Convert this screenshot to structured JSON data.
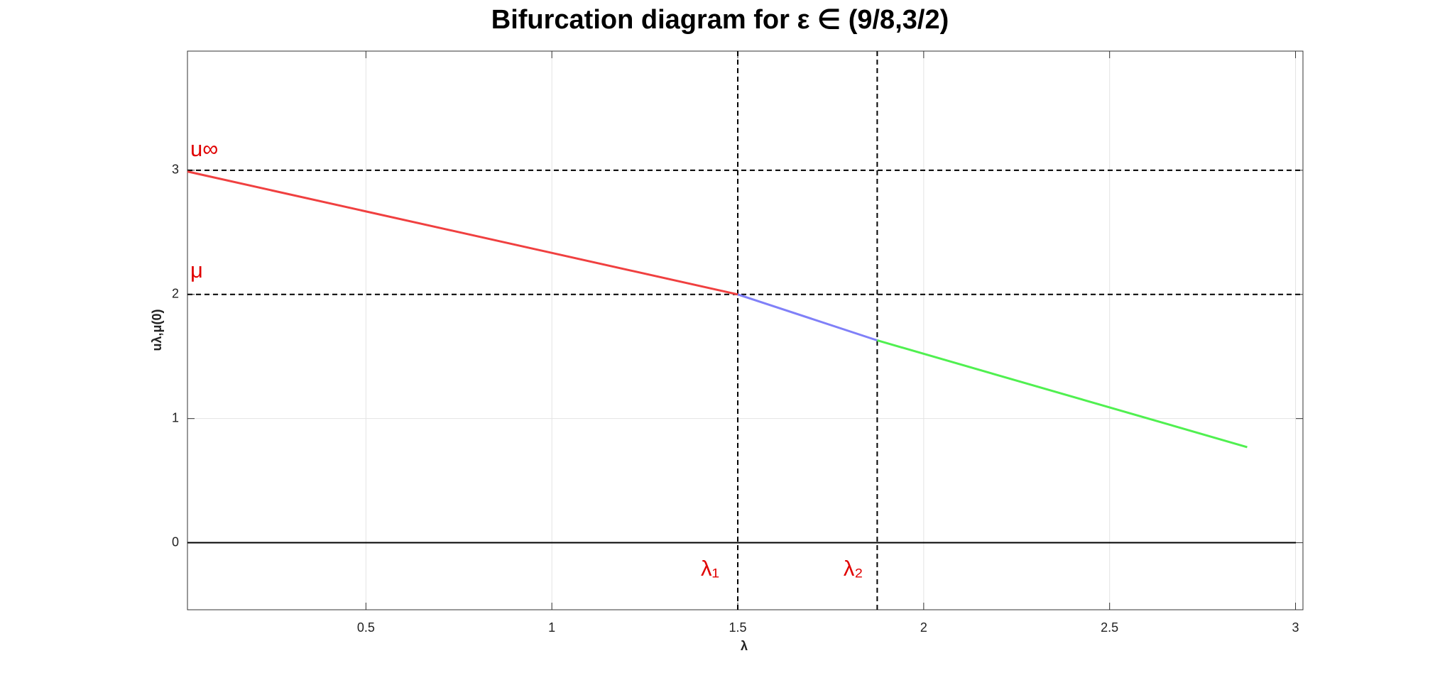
{
  "chart_data": {
    "type": "line",
    "title": "Bifurcation diagram for ε ∈ (9/8,3/2)",
    "xlabel": "λ",
    "ylabel": "uλ,μ(0)",
    "xlim": [
      0.02,
      3.02
    ],
    "ylim": [
      -0.54,
      3.96
    ],
    "xticks": [
      0.5,
      1,
      1.5,
      2,
      2.5,
      3
    ],
    "yticks": [
      0,
      1,
      2,
      3
    ],
    "grid": true,
    "series": [
      {
        "name": "red",
        "color": "#f04040",
        "x": [
          0.02,
          1.5
        ],
        "values": [
          2.99,
          2
        ]
      },
      {
        "name": "blue",
        "color": "#8080f8",
        "x": [
          1.5,
          1.875
        ],
        "values": [
          2,
          1.63
        ]
      },
      {
        "name": "green",
        "color": "#50f050",
        "x": [
          1.875,
          2.87
        ],
        "values": [
          1.63,
          0.77
        ]
      }
    ],
    "hlines": [
      3,
      2
    ],
    "vlines": [
      1.5,
      1.875
    ],
    "annotations": [
      "u∞",
      "μ",
      "λ₁",
      "λ₂"
    ]
  }
}
